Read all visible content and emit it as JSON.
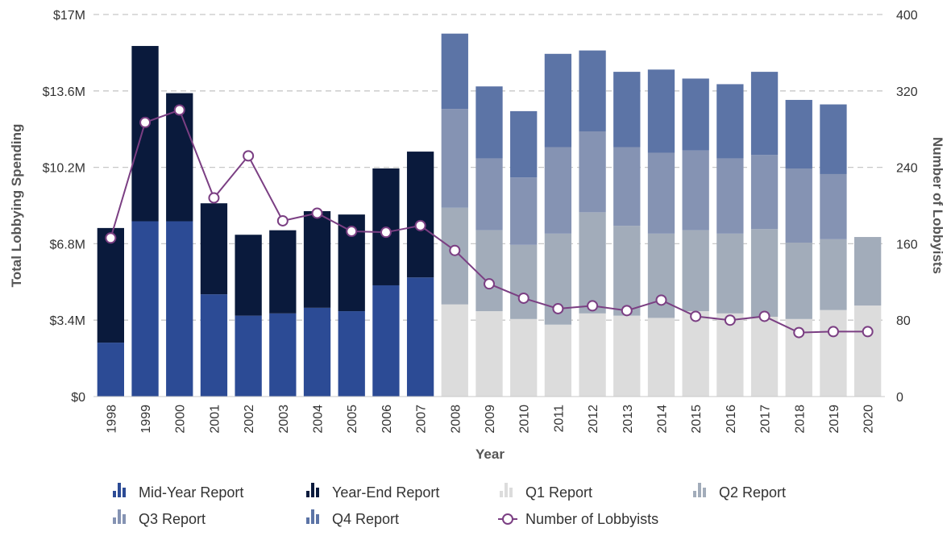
{
  "chart_data": {
    "type": "bar",
    "subtype": "stacked-bar-with-line",
    "xlabel": "Year",
    "ylabel": "Total Lobbying Spending",
    "y2label": "Number of Lobbyists",
    "ylim": [
      0,
      17
    ],
    "y_ticks": [
      "$0",
      "$3.4M",
      "$6.8M",
      "$10.2M",
      "$13.6M",
      "$17M"
    ],
    "y_tick_values": [
      0,
      3.4,
      6.8,
      10.2,
      13.6,
      17
    ],
    "y2lim": [
      0,
      400
    ],
    "y2_ticks": [
      "0",
      "80",
      "160",
      "240",
      "320",
      "400"
    ],
    "y2_tick_values": [
      0,
      80,
      160,
      240,
      320,
      400
    ],
    "grid": true,
    "legend_position": "bottom",
    "categories": [
      "1998",
      "1999",
      "2000",
      "2001",
      "2002",
      "2003",
      "2004",
      "2005",
      "2006",
      "2007",
      "2008",
      "2009",
      "2010",
      "2011",
      "2012",
      "2013",
      "2014",
      "2015",
      "2016",
      "2017",
      "2018",
      "2019",
      "2020"
    ],
    "series": [
      {
        "name": "Mid-Year Report",
        "color": "#2c4b95",
        "values": [
          2.4,
          7.8,
          7.8,
          4.55,
          3.6,
          3.7,
          3.95,
          3.8,
          4.95,
          5.3,
          null,
          null,
          null,
          null,
          null,
          null,
          null,
          null,
          null,
          null,
          null,
          null,
          null
        ]
      },
      {
        "name": "Year-End Report",
        "color": "#0a1a3c",
        "values": [
          5.1,
          7.8,
          5.7,
          4.05,
          3.6,
          3.7,
          4.3,
          4.3,
          5.2,
          5.6,
          null,
          null,
          null,
          null,
          null,
          null,
          null,
          null,
          null,
          null,
          null,
          null,
          null
        ]
      },
      {
        "name": "Q1 Report",
        "color": "#dcdcdc",
        "values": [
          null,
          null,
          null,
          null,
          null,
          null,
          null,
          null,
          null,
          null,
          4.1,
          3.8,
          3.45,
          3.2,
          3.7,
          3.6,
          3.5,
          3.8,
          3.7,
          3.55,
          3.45,
          3.85,
          4.05
        ]
      },
      {
        "name": "Q2 Report",
        "color": "#a2acba",
        "values": [
          null,
          null,
          null,
          null,
          null,
          null,
          null,
          null,
          null,
          null,
          4.3,
          3.6,
          3.3,
          4.05,
          4.5,
          4.0,
          3.75,
          3.6,
          3.55,
          3.9,
          3.4,
          3.15,
          3.05
        ]
      },
      {
        "name": "Q3 Report",
        "color": "#8593b3",
        "values": [
          null,
          null,
          null,
          null,
          null,
          null,
          null,
          null,
          null,
          null,
          4.4,
          3.2,
          3.0,
          3.85,
          3.6,
          3.5,
          3.6,
          3.55,
          3.35,
          3.3,
          3.3,
          2.9,
          null
        ]
      },
      {
        "name": "Q4 Report",
        "color": "#5c74a6",
        "values": [
          null,
          null,
          null,
          null,
          null,
          null,
          null,
          null,
          null,
          null,
          3.35,
          3.2,
          2.95,
          4.15,
          3.6,
          3.35,
          3.7,
          3.2,
          3.3,
          3.7,
          3.05,
          3.1,
          null
        ]
      },
      {
        "name": "Number of Lobbyists",
        "type": "line",
        "axis": "y2",
        "color": "#7b3f83",
        "values": [
          166,
          287,
          300,
          208,
          252,
          184,
          192,
          173,
          172,
          179,
          153,
          118,
          103,
          92,
          95,
          90,
          101,
          84,
          80,
          84,
          67,
          68,
          68
        ]
      }
    ]
  }
}
